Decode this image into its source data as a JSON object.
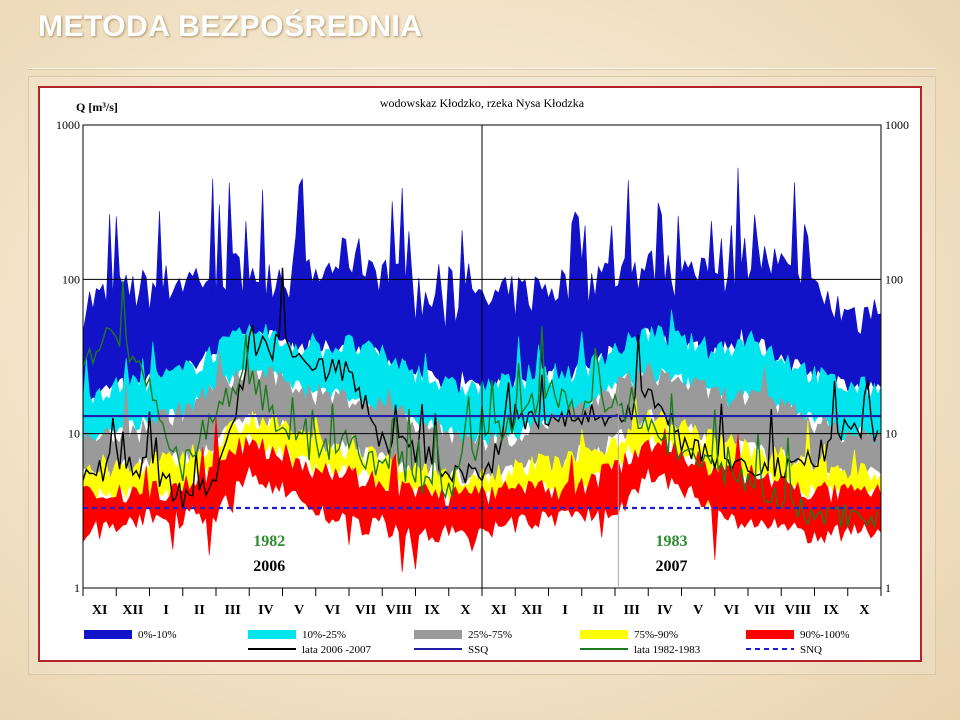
{
  "slide": {
    "title": "METODA BEZPOŚREDNIA"
  },
  "chart_data": {
    "type": "area",
    "title": "wodowskaz Kłodzko, rzeka Nysa Kłodzka",
    "ylabel": "Q [m³/s]",
    "yscale": "log",
    "ylim": [
      1,
      1000
    ],
    "yticks": [
      "1",
      "10",
      "100",
      "1000"
    ],
    "xlabel": "",
    "x_tick_labels": [
      "XI",
      "XII",
      "I",
      "II",
      "III",
      "IV",
      "V",
      "VI",
      "VII",
      "VIII",
      "IX",
      "X",
      "XI",
      "XII",
      "I",
      "II",
      "III",
      "IV",
      "V",
      "VI",
      "VII",
      "VIII",
      "IX",
      "X"
    ],
    "periods": [
      {
        "years_top": "1982",
        "years_bottom": "2006"
      },
      {
        "years_top": "1983",
        "years_bottom": "2007"
      }
    ],
    "band_months": [
      "XI",
      "XII",
      "I",
      "II",
      "III",
      "IV",
      "V",
      "VI",
      "VII",
      "VIII",
      "IX",
      "X",
      "XI",
      "XII",
      "I",
      "II",
      "III",
      "IV",
      "V",
      "VI",
      "VII",
      "VIII",
      "IX",
      "X"
    ],
    "bands": [
      {
        "name": "0%-10%",
        "color": "#1212c8",
        "lower": [
          18,
          20,
          22,
          25,
          35,
          45,
          40,
          35,
          38,
          32,
          25,
          20,
          20,
          22,
          24,
          26,
          35,
          45,
          40,
          35,
          40,
          32,
          24,
          20
        ],
        "upper": [
          70,
          80,
          90,
          100,
          110,
          120,
          110,
          100,
          150,
          120,
          80,
          60,
          70,
          80,
          90,
          100,
          110,
          120,
          110,
          100,
          150,
          120,
          80,
          60
        ]
      },
      {
        "name": "10%-25%",
        "color": "#00e4ee",
        "lower": [
          9,
          10,
          12,
          14,
          20,
          25,
          22,
          18,
          17,
          15,
          12,
          10,
          9,
          10,
          12,
          14,
          20,
          25,
          22,
          18,
          17,
          15,
          12,
          10
        ],
        "upper": [
          18,
          20,
          22,
          25,
          35,
          45,
          40,
          35,
          38,
          32,
          25,
          20,
          20,
          22,
          24,
          26,
          35,
          45,
          40,
          35,
          40,
          32,
          24,
          20
        ]
      },
      {
        "name": "25%-75%",
        "color": "#9a9a9a",
        "lower": [
          5.5,
          6,
          6.5,
          7,
          9,
          13,
          11,
          9,
          8,
          7,
          6,
          5.5,
          5.5,
          6,
          6.5,
          7,
          9,
          13,
          11,
          9,
          8,
          7,
          6,
          5.5
        ],
        "upper": [
          9,
          10,
          12,
          14,
          20,
          25,
          22,
          18,
          17,
          15,
          12,
          10,
          9,
          10,
          12,
          14,
          20,
          25,
          22,
          18,
          17,
          15,
          12,
          10
        ]
      },
      {
        "name": "75%-90%",
        "color": "#ffff00",
        "lower": [
          4,
          4.2,
          4.3,
          4.5,
          6,
          9,
          7.5,
          6,
          5.5,
          4.8,
          4.2,
          4,
          4,
          4.2,
          4.3,
          4.5,
          6,
          9,
          7.5,
          6,
          5.5,
          4.8,
          4.2,
          4
        ],
        "upper": [
          5.5,
          6,
          6.5,
          7,
          9,
          13,
          11,
          9,
          8,
          7,
          6,
          5.5,
          5.5,
          6,
          6.5,
          7,
          9,
          13,
          11,
          9,
          8,
          7,
          6,
          5.5
        ]
      },
      {
        "name": "90%-100%",
        "color": "#ff0000",
        "lower": [
          2.3,
          2.6,
          2.9,
          3,
          3,
          5.5,
          4.5,
          3.2,
          2.6,
          2.5,
          2.2,
          2.3,
          2.3,
          2.6,
          2.9,
          3,
          3,
          5.5,
          4.5,
          3.2,
          2.6,
          2.5,
          2.2,
          2.3
        ],
        "upper": [
          4,
          4.2,
          4.3,
          4.5,
          6,
          9,
          7.5,
          6,
          5.5,
          4.8,
          4.2,
          4,
          4,
          4.2,
          4.3,
          4.5,
          6,
          9,
          7.5,
          6,
          5.5,
          4.8,
          4.2,
          4
        ]
      }
    ],
    "lines": [
      {
        "name": "lata 2006 -2007",
        "color": "#000000",
        "values": [
          5,
          7,
          6,
          4,
          5,
          30,
          40,
          28,
          25,
          9,
          8,
          6,
          5,
          13,
          11,
          14,
          11,
          20,
          9,
          7,
          6,
          6,
          7,
          11
        ]
      },
      {
        "name": "lata 1982-1983",
        "color": "#1e7a1e",
        "values": [
          30,
          50,
          20,
          6,
          15,
          25,
          10,
          8,
          9,
          6,
          5,
          4.5,
          9,
          12,
          20,
          14,
          16,
          12,
          7,
          6,
          5,
          3.6,
          3,
          3
        ]
      }
    ],
    "reference_lines": [
      {
        "name": "SSQ",
        "value": 13,
        "color": "#1f1fa8",
        "style": "solid"
      },
      {
        "name": "SNQ",
        "value": 3.3,
        "color": "#1f1fcf",
        "style": "dashed"
      }
    ],
    "legend": [
      {
        "label": "0%-10%",
        "kind": "swatch",
        "color": "#1212c8"
      },
      {
        "label": "10%-25%",
        "kind": "swatch",
        "color": "#00e4ee"
      },
      {
        "label": "25%-75%",
        "kind": "swatch",
        "color": "#9a9a9a"
      },
      {
        "label": "75%-90%",
        "kind": "swatch",
        "color": "#ffff00"
      },
      {
        "label": "90%-100%",
        "kind": "swatch",
        "color": "#ff0000"
      },
      {
        "label": "lata 2006 -2007",
        "kind": "line",
        "color": "#000000"
      },
      {
        "label": "SSQ",
        "kind": "line",
        "color": "#1f1fa8"
      },
      {
        "label": "lata 1982-1983",
        "kind": "line",
        "color": "#1e7a1e"
      },
      {
        "label": "SNQ",
        "kind": "dashed",
        "color": "#1f1fcf"
      }
    ],
    "legend_placement": "bottom",
    "grid": "horizontal at decades",
    "year_label_color_top": "#2e8b2e",
    "year_label_color_bottom": "#000000"
  }
}
